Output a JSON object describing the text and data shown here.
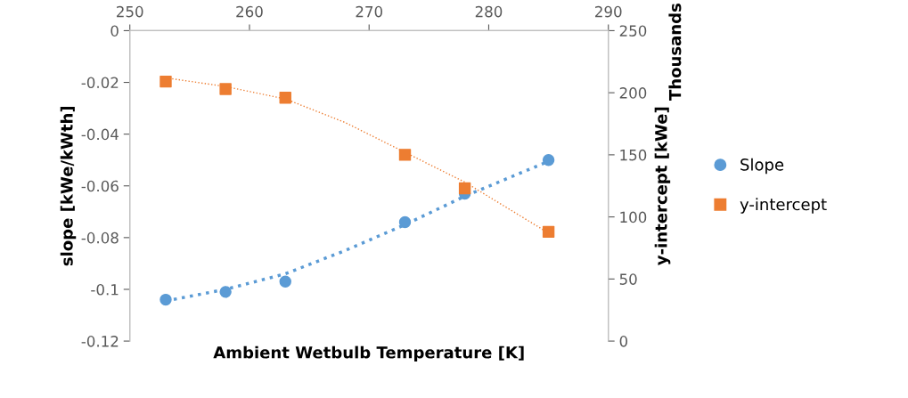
{
  "chart_data": {
    "type": "scatter",
    "xlabel": "Ambient Wetbulb Temperature [K]",
    "ylabel": "slope [kWe/kWth]",
    "y2label": "y-intercept [kWe]",
    "annotations": [
      "Thousands"
    ],
    "xlim": [
      250,
      290
    ],
    "xticks": [
      250,
      260,
      270,
      280,
      290
    ],
    "ylim": [
      -0.12,
      0
    ],
    "yticks": [
      -0.12,
      -0.1,
      -0.08,
      -0.06,
      -0.04,
      -0.02,
      0
    ],
    "y2lim": [
      0,
      250
    ],
    "y2ticks": [
      0,
      50,
      100,
      150,
      200,
      250
    ],
    "grid": false,
    "legend": "right",
    "series": [
      {
        "name": "Slope",
        "color": "#5b9bd5",
        "marker": "circle",
        "x": [
          253,
          258,
          263,
          273,
          278,
          285
        ],
        "values": [
          -0.104,
          -0.101,
          -0.097,
          -0.074,
          -0.063,
          -0.05
        ]
      },
      {
        "name": "y-intercept",
        "color": "#ed7d31",
        "marker": "square",
        "axis": "y2",
        "x": [
          253,
          258,
          263,
          273,
          278,
          285
        ],
        "values": [
          209,
          203,
          196,
          150,
          123,
          88
        ]
      },
      {
        "type": "line",
        "color": "#5b9bd5",
        "line_style": "dotted",
        "marker": "none",
        "x": [
          253,
          258,
          263,
          268,
          273,
          278,
          285
        ],
        "values": [
          -0.1045,
          -0.1,
          -0.094,
          -0.085,
          -0.075,
          -0.064,
          -0.0505
        ]
      },
      {
        "type": "line",
        "color": "#ed7d31",
        "line_style": "dotted",
        "marker": "none",
        "axis": "y2",
        "x": [
          253,
          258,
          263,
          268,
          273,
          278,
          285
        ],
        "values": [
          212,
          205,
          195,
          176,
          152,
          128,
          87
        ]
      }
    ]
  }
}
